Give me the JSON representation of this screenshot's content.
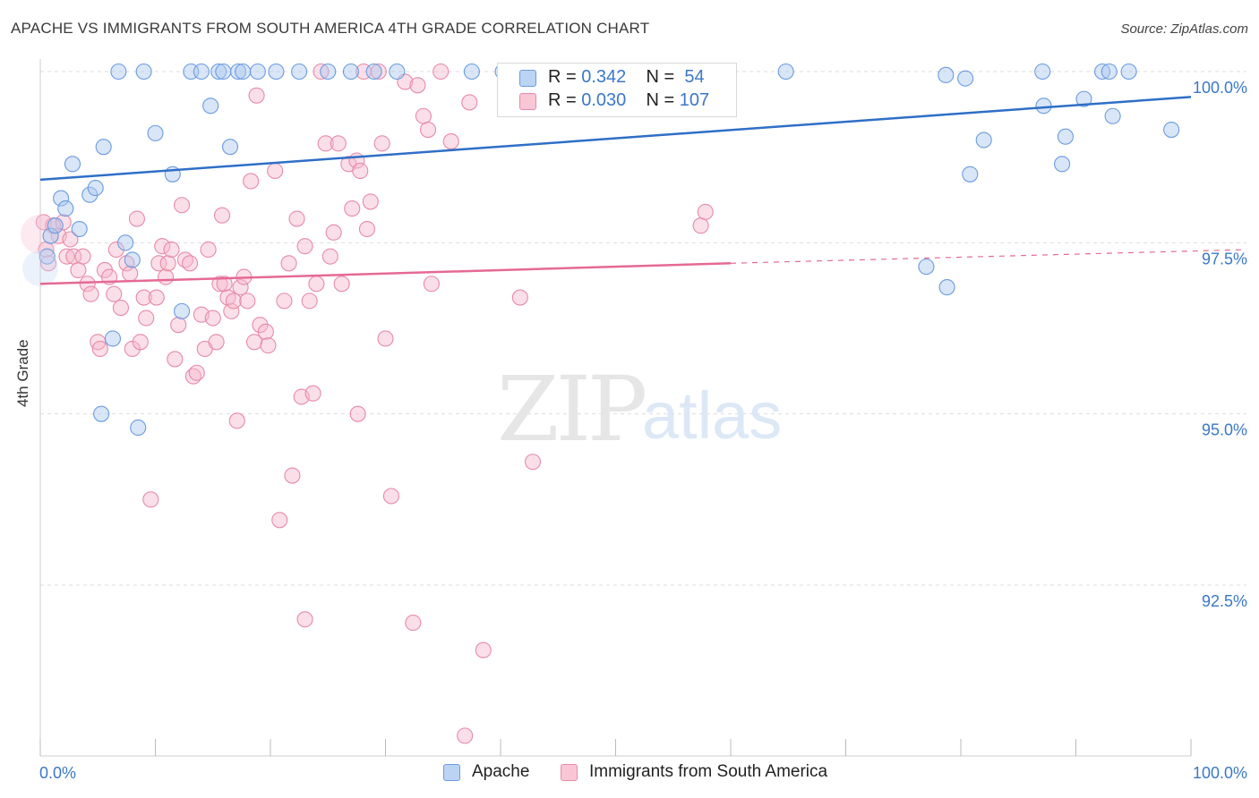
{
  "title": "APACHE VS IMMIGRANTS FROM SOUTH AMERICA 4TH GRADE CORRELATION CHART",
  "source": "Source: ZipAtlas.com",
  "watermark": {
    "zip": "ZIP",
    "atlas": "atlas"
  },
  "legend_top": {
    "rows": [
      {
        "r_label": "R =",
        "r_value": "0.342",
        "n_label": "N =",
        "n_value": "54"
      },
      {
        "r_label": "R =",
        "r_value": "0.030",
        "n_label": "N =",
        "n_value": "107"
      }
    ]
  },
  "chart_data": {
    "type": "scatter",
    "title": "APACHE VS IMMIGRANTS FROM SOUTH AMERICA 4TH GRADE CORRELATION CHART",
    "xlabel": "",
    "ylabel": "4th Grade",
    "xlim": [
      0,
      100
    ],
    "ylim": [
      90.2,
      100.3
    ],
    "x_tick_labels": [
      "0.0%",
      "100.0%"
    ],
    "y_ticks": [
      92.5,
      95.0,
      97.5,
      100.0
    ],
    "y_tick_labels": [
      "92.5%",
      "95.0%",
      "97.5%",
      "100.0%"
    ],
    "grid": true,
    "legend_position": "top-center",
    "colors": {
      "Apache": "#6b9be0",
      "Immigrants from South America": "#e88aa8",
      "Apache_line": "#2f6fc6",
      "Immigrants_line": "#e56a93"
    },
    "series": [
      {
        "name": "Apache",
        "R": 0.342,
        "N": 54,
        "trend": {
          "x": [
            0,
            100
          ],
          "y": [
            98.42,
            99.63
          ]
        },
        "points": [
          [
            0.6,
            97.3
          ],
          [
            0.9,
            97.6
          ],
          [
            1.3,
            97.75
          ],
          [
            1.8,
            98.15
          ],
          [
            2.2,
            98.0
          ],
          [
            2.8,
            98.65
          ],
          [
            3.4,
            97.7
          ],
          [
            4.3,
            98.2
          ],
          [
            4.8,
            98.3
          ],
          [
            5.5,
            98.9
          ],
          [
            6.3,
            96.1
          ],
          [
            7.4,
            97.5
          ],
          [
            8.0,
            97.25
          ],
          [
            8.5,
            94.8
          ],
          [
            5.3,
            95.0
          ],
          [
            6.8,
            100.0
          ],
          [
            9.0,
            100.0
          ],
          [
            10.0,
            99.1
          ],
          [
            11.5,
            98.5
          ],
          [
            12.3,
            96.5
          ],
          [
            13.1,
            100.0
          ],
          [
            14.0,
            100.0
          ],
          [
            14.8,
            99.5
          ],
          [
            15.5,
            100.0
          ],
          [
            15.9,
            100.0
          ],
          [
            16.5,
            98.9
          ],
          [
            17.2,
            100.0
          ],
          [
            17.6,
            100.0
          ],
          [
            18.9,
            100.0
          ],
          [
            20.5,
            100.0
          ],
          [
            22.5,
            100.0
          ],
          [
            25.0,
            100.0
          ],
          [
            27.0,
            100.0
          ],
          [
            29.0,
            100.0
          ],
          [
            31.0,
            100.0
          ],
          [
            37.5,
            100.0
          ],
          [
            40.2,
            100.0
          ],
          [
            64.8,
            100.0
          ],
          [
            77.0,
            97.15
          ],
          [
            78.8,
            96.85
          ],
          [
            78.7,
            99.95
          ],
          [
            80.4,
            99.9
          ],
          [
            80.8,
            98.5
          ],
          [
            82.0,
            99.0
          ],
          [
            87.1,
            100.0
          ],
          [
            87.2,
            99.5
          ],
          [
            88.8,
            98.65
          ],
          [
            89.1,
            99.05
          ],
          [
            90.7,
            99.6
          ],
          [
            92.3,
            100.0
          ],
          [
            92.9,
            100.0
          ],
          [
            93.2,
            99.35
          ],
          [
            94.6,
            100.0
          ],
          [
            98.3,
            99.15
          ]
        ]
      },
      {
        "name": "Immigrants from South America",
        "R": 0.03,
        "N": 107,
        "trend": {
          "x": [
            0,
            60
          ],
          "y": [
            96.9,
            97.2
          ]
        },
        "trend_dashed": {
          "x": [
            60,
            100
          ],
          "y": [
            97.2,
            97.4
          ]
        },
        "points": [
          [
            0.3,
            97.8
          ],
          [
            0.5,
            97.4
          ],
          [
            0.7,
            97.2
          ],
          [
            1.1,
            97.75
          ],
          [
            1.6,
            97.6
          ],
          [
            2.0,
            97.8
          ],
          [
            2.3,
            97.3
          ],
          [
            2.6,
            97.55
          ],
          [
            2.9,
            97.3
          ],
          [
            3.3,
            97.1
          ],
          [
            3.7,
            97.3
          ],
          [
            4.1,
            96.9
          ],
          [
            4.4,
            96.75
          ],
          [
            5.0,
            96.05
          ],
          [
            5.2,
            95.95
          ],
          [
            5.6,
            97.1
          ],
          [
            6.0,
            97.0
          ],
          [
            6.4,
            96.75
          ],
          [
            6.6,
            97.4
          ],
          [
            7.0,
            96.55
          ],
          [
            7.5,
            97.2
          ],
          [
            7.8,
            97.05
          ],
          [
            8.0,
            95.95
          ],
          [
            8.4,
            97.85
          ],
          [
            8.7,
            96.05
          ],
          [
            9.0,
            96.7
          ],
          [
            9.2,
            96.4
          ],
          [
            9.6,
            93.75
          ],
          [
            10.1,
            96.7
          ],
          [
            10.3,
            97.2
          ],
          [
            10.6,
            97.45
          ],
          [
            10.9,
            97.0
          ],
          [
            11.1,
            97.2
          ],
          [
            11.4,
            97.4
          ],
          [
            11.7,
            95.8
          ],
          [
            12.0,
            96.3
          ],
          [
            12.3,
            98.05
          ],
          [
            12.6,
            97.25
          ],
          [
            13.0,
            97.2
          ],
          [
            13.3,
            95.55
          ],
          [
            13.6,
            95.6
          ],
          [
            14.0,
            96.45
          ],
          [
            14.3,
            95.95
          ],
          [
            14.6,
            97.4
          ],
          [
            15.0,
            96.4
          ],
          [
            15.3,
            96.05
          ],
          [
            15.6,
            96.9
          ],
          [
            15.8,
            97.9
          ],
          [
            16.0,
            96.9
          ],
          [
            16.3,
            96.7
          ],
          [
            16.6,
            96.5
          ],
          [
            16.8,
            96.65
          ],
          [
            17.1,
            94.9
          ],
          [
            17.4,
            96.85
          ],
          [
            17.7,
            97.0
          ],
          [
            18.0,
            96.65
          ],
          [
            18.3,
            98.4
          ],
          [
            18.6,
            96.05
          ],
          [
            18.8,
            99.65
          ],
          [
            19.1,
            96.3
          ],
          [
            19.6,
            96.2
          ],
          [
            19.8,
            96.0
          ],
          [
            20.4,
            98.55
          ],
          [
            20.8,
            93.45
          ],
          [
            21.2,
            96.65
          ],
          [
            21.6,
            97.2
          ],
          [
            21.9,
            94.1
          ],
          [
            22.3,
            97.85
          ],
          [
            22.7,
            95.25
          ],
          [
            23.0,
            97.45
          ],
          [
            23.4,
            96.65
          ],
          [
            23.7,
            95.3
          ],
          [
            24.0,
            96.9
          ],
          [
            24.4,
            100.0
          ],
          [
            24.8,
            98.95
          ],
          [
            25.2,
            97.3
          ],
          [
            25.5,
            97.65
          ],
          [
            25.9,
            98.95
          ],
          [
            26.2,
            96.9
          ],
          [
            26.8,
            98.65
          ],
          [
            27.1,
            98.0
          ],
          [
            27.5,
            98.7
          ],
          [
            27.8,
            98.55
          ],
          [
            28.1,
            100.0
          ],
          [
            28.4,
            97.7
          ],
          [
            28.7,
            98.1
          ],
          [
            29.4,
            100.0
          ],
          [
            29.7,
            98.95
          ],
          [
            30.5,
            93.8
          ],
          [
            31.7,
            99.85
          ],
          [
            32.8,
            99.8
          ],
          [
            32.4,
            91.95
          ],
          [
            33.3,
            99.35
          ],
          [
            33.7,
            99.15
          ],
          [
            35.7,
            98.98
          ],
          [
            34.8,
            100.0
          ],
          [
            36.9,
            90.3
          ],
          [
            37.3,
            99.55
          ],
          [
            38.5,
            91.55
          ],
          [
            41.7,
            96.7
          ],
          [
            42.8,
            94.3
          ],
          [
            57.4,
            97.75
          ],
          [
            57.8,
            97.95
          ],
          [
            34.0,
            96.9
          ],
          [
            27.6,
            95.0
          ],
          [
            23.0,
            92.0
          ],
          [
            30.0,
            96.1
          ]
        ]
      }
    ]
  },
  "legend_bottom": {
    "items": [
      "Apache",
      "Immigrants from South America"
    ]
  }
}
